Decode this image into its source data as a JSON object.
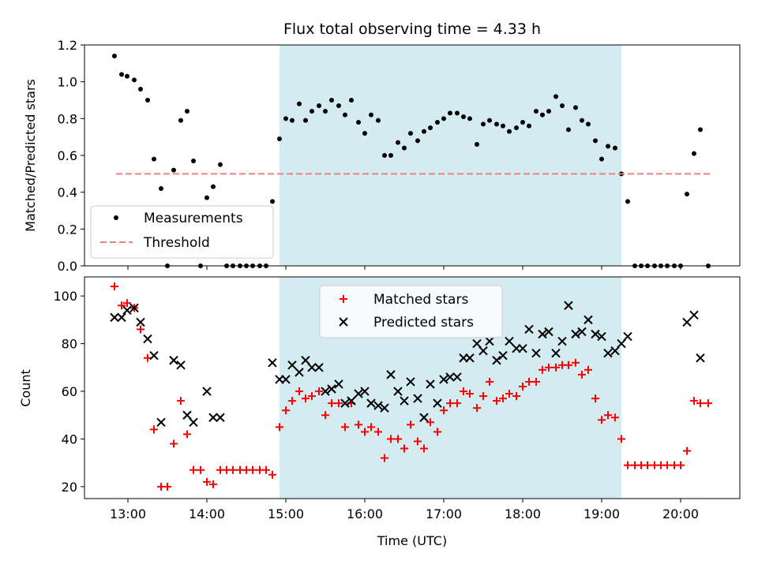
{
  "chart_data": {
    "type": "scatter",
    "title": "Flux total observing time = 4.33 h",
    "xlabel": "Time (UTC)",
    "x_unit": "hours UTC",
    "xlim": [
      12.45,
      20.75
    ],
    "x_ticks": [
      {
        "value": 13,
        "label": "13:00"
      },
      {
        "value": 14,
        "label": "14:00"
      },
      {
        "value": 15,
        "label": "15:00"
      },
      {
        "value": 16,
        "label": "16:00"
      },
      {
        "value": 17,
        "label": "17:00"
      },
      {
        "value": 18,
        "label": "18:00"
      },
      {
        "value": 19,
        "label": "19:00"
      },
      {
        "value": 20,
        "label": "20:00"
      }
    ],
    "highlight_span": {
      "start": 14.92,
      "end": 19.25,
      "color": "#d4ebf2"
    },
    "panels": [
      {
        "id": "ratio",
        "ylabel": "Matched/Predicted stars",
        "ylim": [
          0,
          1.2
        ],
        "y_ticks": [
          "0.0",
          "0.2",
          "0.4",
          "0.6",
          "0.8",
          "1.0",
          "1.2"
        ],
        "y_tick_values": [
          0,
          0.2,
          0.4,
          0.6,
          0.8,
          1.0,
          1.2
        ],
        "legend_position": "lower-left",
        "series": [
          {
            "name": "Measurements",
            "marker": "dot",
            "color": "#000000",
            "x": [
              12.83,
              12.92,
              12.99,
              13.08,
              13.16,
              13.25,
              13.33,
              13.42,
              13.5,
              13.58,
              13.67,
              13.75,
              13.83,
              13.92,
              14.0,
              14.08,
              14.17,
              14.25,
              14.33,
              14.42,
              14.5,
              14.58,
              14.67,
              14.75,
              14.83,
              14.92,
              15.0,
              15.08,
              15.17,
              15.25,
              15.33,
              15.42,
              15.5,
              15.58,
              15.67,
              15.75,
              15.83,
              15.92,
              16.0,
              16.08,
              16.17,
              16.25,
              16.33,
              16.42,
              16.5,
              16.58,
              16.67,
              16.75,
              16.83,
              16.92,
              17.0,
              17.08,
              17.17,
              17.25,
              17.33,
              17.42,
              17.5,
              17.58,
              17.67,
              17.75,
              17.83,
              17.92,
              18.0,
              18.08,
              18.17,
              18.25,
              18.33,
              18.42,
              18.5,
              18.58,
              18.67,
              18.75,
              18.83,
              18.92,
              19.0,
              19.08,
              19.17,
              19.25,
              19.33,
              19.42,
              19.5,
              19.58,
              19.67,
              19.75,
              19.83,
              19.92,
              20.0,
              20.08,
              20.17,
              20.25,
              20.35
            ],
            "y": [
              1.14,
              1.04,
              1.03,
              1.01,
              0.96,
              0.9,
              0.58,
              0.42,
              0.0,
              0.52,
              0.79,
              0.84,
              0.57,
              0.0,
              0.37,
              0.43,
              0.55,
              0.0,
              0.0,
              0.0,
              0.0,
              0.0,
              0.0,
              0.0,
              0.35,
              0.69,
              0.8,
              0.79,
              0.88,
              0.79,
              0.84,
              0.87,
              0.84,
              0.9,
              0.87,
              0.82,
              0.9,
              0.78,
              0.72,
              0.82,
              0.79,
              0.6,
              0.6,
              0.67,
              0.64,
              0.72,
              0.68,
              0.73,
              0.75,
              0.78,
              0.8,
              0.83,
              0.83,
              0.81,
              0.8,
              0.66,
              0.77,
              0.79,
              0.77,
              0.76,
              0.73,
              0.75,
              0.78,
              0.76,
              0.84,
              0.82,
              0.84,
              0.92,
              0.87,
              0.74,
              0.86,
              0.79,
              0.77,
              0.68,
              0.58,
              0.65,
              0.64,
              0.5,
              0.35,
              0.0,
              0.0,
              0.0,
              0.0,
              0.0,
              0.0,
              0.0,
              0.0,
              0.39,
              0.61,
              0.74,
              0.0
            ]
          },
          {
            "name": "Threshold",
            "type": "line",
            "style": "dashed",
            "color": "#f08080",
            "x": [
              12.85,
              20.4
            ],
            "y": [
              0.5,
              0.5
            ]
          }
        ]
      },
      {
        "id": "count",
        "ylabel": "Count",
        "ylim": [
          15,
          108
        ],
        "y_ticks": [
          "20",
          "40",
          "60",
          "80",
          "100"
        ],
        "y_tick_values": [
          20,
          40,
          60,
          80,
          100
        ],
        "legend_position": "top-center",
        "series": [
          {
            "name": "Matched stars",
            "marker": "plus",
            "color": "#ff0000",
            "x": [
              12.83,
              12.92,
              12.99,
              13.08,
              13.16,
              13.25,
              13.33,
              13.42,
              13.5,
              13.58,
              13.67,
              13.75,
              13.83,
              13.92,
              14.0,
              14.08,
              14.17,
              14.25,
              14.33,
              14.42,
              14.5,
              14.58,
              14.67,
              14.75,
              14.83,
              14.92,
              15.0,
              15.08,
              15.17,
              15.25,
              15.33,
              15.42,
              15.5,
              15.58,
              15.67,
              15.75,
              15.83,
              15.92,
              16.0,
              16.08,
              16.17,
              16.25,
              16.33,
              16.42,
              16.5,
              16.58,
              16.67,
              16.75,
              16.83,
              16.92,
              17.0,
              17.08,
              17.17,
              17.25,
              17.33,
              17.42,
              17.5,
              17.58,
              17.67,
              17.75,
              17.83,
              17.92,
              18.0,
              18.08,
              18.17,
              18.25,
              18.33,
              18.42,
              18.5,
              18.58,
              18.67,
              18.75,
              18.83,
              18.92,
              19.0,
              19.08,
              19.17,
              19.25,
              19.33,
              19.42,
              19.5,
              19.58,
              19.67,
              19.75,
              19.83,
              19.92,
              20.0,
              20.08,
              20.17,
              20.25,
              20.35
            ],
            "y": [
              104,
              96,
              97,
              95,
              86,
              74,
              44,
              20,
              20,
              38,
              56,
              42,
              27,
              27,
              22,
              21,
              27,
              27,
              27,
              27,
              27,
              27,
              27,
              27,
              25,
              45,
              52,
              56,
              60,
              57,
              58,
              60,
              50,
              55,
              55,
              45,
              55,
              46,
              43,
              45,
              43,
              32,
              40,
              40,
              36,
              46,
              39,
              36,
              47,
              43,
              52,
              55,
              55,
              60,
              59,
              53,
              58,
              64,
              56,
              57,
              59,
              58,
              62,
              64,
              64,
              69,
              70,
              70,
              71,
              71,
              72,
              67,
              69,
              57,
              48,
              50,
              49,
              40,
              29,
              29,
              29,
              29,
              29,
              29,
              29,
              29,
              29,
              35,
              56,
              55,
              55
            ]
          },
          {
            "name": "Predicted stars",
            "marker": "x",
            "color": "#000000",
            "x": [
              12.83,
              12.92,
              12.99,
              13.08,
              13.16,
              13.25,
              13.33,
              13.42,
              13.58,
              13.67,
              13.75,
              13.83,
              14.0,
              14.08,
              14.17,
              14.83,
              14.92,
              15.0,
              15.08,
              15.17,
              15.25,
              15.33,
              15.42,
              15.5,
              15.58,
              15.67,
              15.75,
              15.83,
              15.92,
              16.0,
              16.08,
              16.17,
              16.25,
              16.33,
              16.42,
              16.5,
              16.58,
              16.67,
              16.75,
              16.83,
              16.92,
              17.0,
              17.08,
              17.17,
              17.25,
              17.33,
              17.42,
              17.5,
              17.58,
              17.67,
              17.75,
              17.83,
              17.92,
              18.0,
              18.08,
              18.17,
              18.25,
              18.33,
              18.42,
              18.5,
              18.58,
              18.67,
              18.75,
              18.83,
              18.92,
              19.0,
              19.08,
              19.17,
              19.25,
              19.33,
              20.08,
              20.17,
              20.25
            ],
            "y": [
              91,
              91,
              94,
              95,
              89,
              82,
              75,
              47,
              73,
              71,
              50,
              47,
              60,
              49,
              49,
              72,
              65,
              65,
              71,
              68,
              73,
              70,
              70,
              60,
              61,
              63,
              55,
              56,
              59,
              60,
              55,
              54,
              53,
              67,
              60,
              56,
              64,
              57,
              49,
              63,
              55,
              65,
              66,
              66,
              74,
              74,
              80,
              77,
              81,
              73,
              75,
              81,
              78,
              78,
              86,
              76,
              84,
              85,
              76,
              81,
              96,
              84,
              85,
              90,
              84,
              83,
              76,
              77,
              80,
              83,
              89,
              92,
              74
            ]
          }
        ]
      }
    ]
  }
}
